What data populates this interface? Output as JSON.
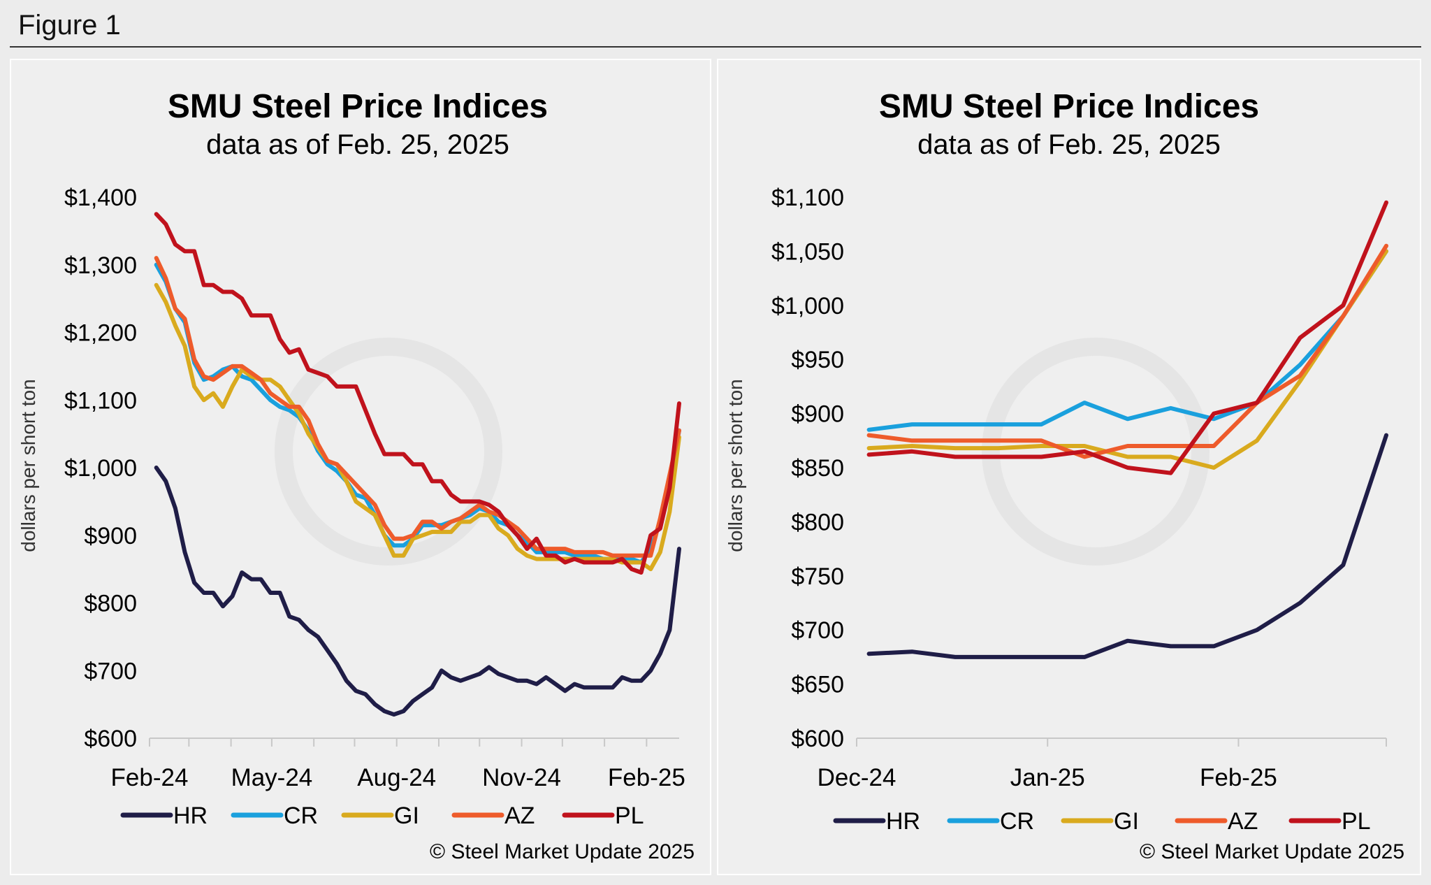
{
  "figure_label": "Figure 1",
  "chart_data": [
    {
      "type": "line",
      "title": "SMU Steel Price Indices",
      "subtitle": "data as of Feb. 25, 2025",
      "xlabel": "",
      "ylabel": "dollars per short ton",
      "ylim": [
        600,
        1400
      ],
      "yticks": [
        600,
        700,
        800,
        900,
        1000,
        1100,
        1200,
        1300,
        1400
      ],
      "ytick_labels": [
        "$600",
        "$700",
        "$800",
        "$900",
        "$1,000",
        "$1,100",
        "$1,200",
        "$1,300",
        "$1,400"
      ],
      "x": [
        "2024-02-06",
        "2024-02-13",
        "2024-02-20",
        "2024-02-27",
        "2024-03-05",
        "2024-03-12",
        "2024-03-19",
        "2024-03-26",
        "2024-04-02",
        "2024-04-09",
        "2024-04-16",
        "2024-04-23",
        "2024-04-30",
        "2024-05-07",
        "2024-05-14",
        "2024-05-21",
        "2024-05-28",
        "2024-06-04",
        "2024-06-11",
        "2024-06-18",
        "2024-06-25",
        "2024-07-02",
        "2024-07-09",
        "2024-07-16",
        "2024-07-23",
        "2024-07-30",
        "2024-08-06",
        "2024-08-13",
        "2024-08-20",
        "2024-08-27",
        "2024-09-03",
        "2024-09-10",
        "2024-09-17",
        "2024-09-24",
        "2024-10-01",
        "2024-10-08",
        "2024-10-15",
        "2024-10-22",
        "2024-10-29",
        "2024-11-05",
        "2024-11-12",
        "2024-11-19",
        "2024-11-26",
        "2024-12-03",
        "2024-12-10",
        "2024-12-17",
        "2024-12-24",
        "2024-12-31",
        "2025-01-07",
        "2025-01-14",
        "2025-01-21",
        "2025-01-28",
        "2025-02-04",
        "2025-02-11",
        "2025-02-18",
        "2025-02-25"
      ],
      "xtick_labels": [
        "Feb-24",
        "May-24",
        "Aug-24",
        "Nov-24",
        "Feb-25"
      ],
      "xtick_dates": [
        "2024-02-01",
        "2024-05-01",
        "2024-08-01",
        "2024-11-01",
        "2025-02-01"
      ],
      "series": [
        {
          "name": "HR",
          "color": "#1f1d47",
          "values": [
            1000,
            980,
            940,
            875,
            830,
            815,
            815,
            795,
            810,
            845,
            835,
            835,
            815,
            815,
            780,
            775,
            760,
            750,
            730,
            710,
            685,
            670,
            665,
            650,
            640,
            635,
            640,
            655,
            665,
            675,
            700,
            690,
            685,
            690,
            695,
            705,
            695,
            690,
            685,
            685,
            680,
            690,
            680,
            670,
            680,
            675,
            675,
            675,
            675,
            690,
            685,
            685,
            700,
            725,
            760,
            880
          ]
        },
        {
          "name": "CR",
          "color": "#1aa0dd",
          "values": [
            1300,
            1275,
            1235,
            1215,
            1155,
            1130,
            1135,
            1145,
            1150,
            1135,
            1130,
            1115,
            1100,
            1090,
            1085,
            1075,
            1055,
            1025,
            1005,
            995,
            980,
            960,
            955,
            930,
            900,
            885,
            885,
            895,
            915,
            915,
            915,
            920,
            925,
            930,
            940,
            935,
            920,
            915,
            900,
            890,
            875,
            875,
            875,
            875,
            870,
            870,
            870,
            865,
            865,
            865,
            865,
            860,
            880,
            920,
            980,
            1055
          ]
        },
        {
          "name": "GI",
          "color": "#d9aa1e",
          "values": [
            1270,
            1245,
            1210,
            1180,
            1120,
            1100,
            1110,
            1090,
            1120,
            1145,
            1135,
            1130,
            1130,
            1120,
            1100,
            1080,
            1050,
            1030,
            1010,
            1005,
            980,
            950,
            940,
            930,
            900,
            870,
            870,
            895,
            900,
            905,
            905,
            905,
            920,
            920,
            930,
            930,
            910,
            900,
            880,
            870,
            865,
            865,
            865,
            865,
            865,
            865,
            865,
            865,
            865,
            860,
            860,
            860,
            850,
            875,
            935,
            1045
          ]
        },
        {
          "name": "AZ",
          "color": "#ee5b2b",
          "values": [
            1310,
            1280,
            1235,
            1220,
            1160,
            1135,
            1130,
            1140,
            1150,
            1150,
            1140,
            1130,
            1110,
            1100,
            1090,
            1090,
            1070,
            1035,
            1010,
            1005,
            990,
            975,
            960,
            945,
            915,
            895,
            895,
            900,
            920,
            920,
            910,
            920,
            925,
            935,
            945,
            935,
            930,
            920,
            910,
            895,
            880,
            880,
            880,
            880,
            875,
            875,
            875,
            875,
            870,
            870,
            870,
            870,
            870,
            925,
            990,
            1055
          ]
        },
        {
          "name": "PL",
          "color": "#c0121c",
          "values": [
            1375,
            1360,
            1330,
            1320,
            1320,
            1270,
            1270,
            1260,
            1260,
            1250,
            1225,
            1225,
            1225,
            1190,
            1170,
            1175,
            1145,
            1140,
            1135,
            1120,
            1120,
            1120,
            1085,
            1050,
            1020,
            1020,
            1020,
            1005,
            1005,
            980,
            980,
            960,
            950,
            950,
            950,
            945,
            935,
            915,
            900,
            880,
            895,
            870,
            870,
            860,
            865,
            860,
            860,
            860,
            860,
            865,
            850,
            845,
            900,
            910,
            970,
            1095
          ]
        }
      ],
      "legend": [
        "HR",
        "CR",
        "GI",
        "AZ",
        "PL"
      ],
      "legend_position": "bottom",
      "grid": false,
      "copyright": "© Steel Market Update 2025"
    },
    {
      "type": "line",
      "title": "SMU Steel Price Indices",
      "subtitle": "data as of Feb. 25, 2025",
      "xlabel": "",
      "ylabel": "dollars per short ton",
      "ylim": [
        600,
        1100
      ],
      "yticks": [
        600,
        650,
        700,
        750,
        800,
        850,
        900,
        950,
        1000,
        1050,
        1100
      ],
      "ytick_labels": [
        "$600",
        "$650",
        "$700",
        "$750",
        "$800",
        "$850",
        "$900",
        "$950",
        "$1,000",
        "$1,050",
        "$1,100"
      ],
      "x": [
        "2024-12-03",
        "2024-12-10",
        "2024-12-17",
        "2024-12-24",
        "2024-12-31",
        "2025-01-07",
        "2025-01-14",
        "2025-01-21",
        "2025-01-28",
        "2025-02-04",
        "2025-02-11",
        "2025-02-18",
        "2025-02-25"
      ],
      "xtick_labels": [
        "Dec-24",
        "Jan-25",
        "Feb-25"
      ],
      "xtick_dates": [
        "2024-12-01",
        "2025-01-01",
        "2025-02-01"
      ],
      "series": [
        {
          "name": "HR",
          "color": "#1f1d47",
          "values": [
            678,
            680,
            675,
            675,
            675,
            675,
            690,
            685,
            685,
            700,
            725,
            760,
            880
          ]
        },
        {
          "name": "CR",
          "color": "#1aa0dd",
          "values": [
            885,
            890,
            890,
            890,
            890,
            910,
            895,
            905,
            895,
            910,
            945,
            990,
            1050
          ]
        },
        {
          "name": "GI",
          "color": "#d9aa1e",
          "values": [
            868,
            870,
            868,
            868,
            870,
            870,
            860,
            860,
            850,
            875,
            930,
            990,
            1050
          ]
        },
        {
          "name": "AZ",
          "color": "#ee5b2b",
          "values": [
            880,
            875,
            875,
            875,
            875,
            860,
            870,
            870,
            870,
            910,
            935,
            990,
            1055
          ]
        },
        {
          "name": "PL",
          "color": "#c0121c",
          "values": [
            862,
            865,
            860,
            860,
            860,
            865,
            850,
            845,
            900,
            910,
            970,
            1000,
            1095
          ]
        }
      ],
      "legend": [
        "HR",
        "CR",
        "GI",
        "AZ",
        "PL"
      ],
      "legend_position": "bottom",
      "grid": false,
      "copyright": "© Steel Market Update 2025"
    }
  ]
}
